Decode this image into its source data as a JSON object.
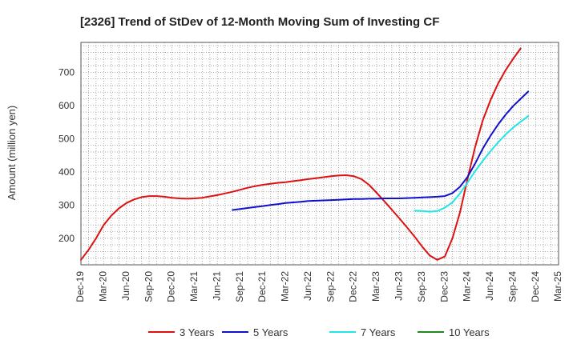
{
  "chart_data": {
    "type": "line",
    "title": "[2326]  Trend of StDev of 12-Month Moving Sum of Investing CF",
    "xlabel": "",
    "ylabel": "Amount (million yen)",
    "ylim": [
      120,
      790
    ],
    "yticks": [
      200,
      300,
      400,
      500,
      600,
      700
    ],
    "x_categories": [
      "Dec-19",
      "Mar-20",
      "Jun-20",
      "Sep-20",
      "Dec-20",
      "Mar-21",
      "Jun-21",
      "Sep-21",
      "Dec-21",
      "Mar-22",
      "Jun-22",
      "Sep-22",
      "Dec-22",
      "Mar-23",
      "Jun-23",
      "Sep-23",
      "Dec-23",
      "Mar-24",
      "Jun-24",
      "Sep-24",
      "Dec-24",
      "Mar-25"
    ],
    "grid": true,
    "legend_position": "bottom",
    "series": [
      {
        "name": "3 Years",
        "color": "#dd1111",
        "points": [
          [
            "Dec-19",
            135
          ],
          [
            "Jan-20",
            165
          ],
          [
            "Feb-20",
            200
          ],
          [
            "Mar-20",
            240
          ],
          [
            "Apr-20",
            268
          ],
          [
            "May-20",
            290
          ],
          [
            "Jun-20",
            306
          ],
          [
            "Jul-20",
            317
          ],
          [
            "Aug-20",
            324
          ],
          [
            "Sep-20",
            327
          ],
          [
            "Oct-20",
            327
          ],
          [
            "Nov-20",
            325
          ],
          [
            "Dec-20",
            322
          ],
          [
            "Jan-21",
            320
          ],
          [
            "Feb-21",
            319
          ],
          [
            "Mar-21",
            320
          ],
          [
            "Apr-21",
            322
          ],
          [
            "May-21",
            326
          ],
          [
            "Jun-21",
            330
          ],
          [
            "Jul-21",
            335
          ],
          [
            "Aug-21",
            340
          ],
          [
            "Sep-21",
            346
          ],
          [
            "Oct-21",
            352
          ],
          [
            "Nov-21",
            357
          ],
          [
            "Dec-21",
            361
          ],
          [
            "Jan-22",
            364
          ],
          [
            "Feb-22",
            367
          ],
          [
            "Mar-22",
            369
          ],
          [
            "Apr-22",
            372
          ],
          [
            "May-22",
            375
          ],
          [
            "Jun-22",
            378
          ],
          [
            "Jul-22",
            381
          ],
          [
            "Aug-22",
            384
          ],
          [
            "Sep-22",
            387
          ],
          [
            "Oct-22",
            389
          ],
          [
            "Nov-22",
            390
          ],
          [
            "Dec-22",
            387
          ],
          [
            "Jan-23",
            378
          ],
          [
            "Feb-23",
            361
          ],
          [
            "Mar-23",
            337
          ],
          [
            "Apr-23",
            312
          ],
          [
            "May-23",
            286
          ],
          [
            "Jun-23",
            260
          ],
          [
            "Jul-23",
            233
          ],
          [
            "Aug-23",
            205
          ],
          [
            "Sep-23",
            175
          ],
          [
            "Oct-23",
            148
          ],
          [
            "Nov-23",
            135
          ],
          [
            "Dec-23",
            145
          ],
          [
            "Jan-24",
            200
          ],
          [
            "Feb-24",
            278
          ],
          [
            "Mar-24",
            380
          ],
          [
            "Apr-24",
            475
          ],
          [
            "May-24",
            555
          ],
          [
            "Jun-24",
            615
          ],
          [
            "Jul-24",
            665
          ],
          [
            "Aug-24",
            706
          ],
          [
            "Sep-24",
            740
          ],
          [
            "Oct-24",
            772
          ]
        ]
      },
      {
        "name": "5 Years",
        "color": "#1111cc",
        "points": [
          [
            "Aug-21",
            285
          ],
          [
            "Sep-21",
            288
          ],
          [
            "Oct-21",
            291
          ],
          [
            "Nov-21",
            294
          ],
          [
            "Dec-21",
            297
          ],
          [
            "Jan-22",
            300
          ],
          [
            "Feb-22",
            303
          ],
          [
            "Mar-22",
            306
          ],
          [
            "Apr-22",
            308
          ],
          [
            "May-22",
            310
          ],
          [
            "Jun-22",
            312
          ],
          [
            "Jul-22",
            313
          ],
          [
            "Aug-22",
            314
          ],
          [
            "Sep-22",
            315
          ],
          [
            "Oct-22",
            316
          ],
          [
            "Nov-22",
            317
          ],
          [
            "Dec-22",
            318
          ],
          [
            "Jan-23",
            318
          ],
          [
            "Feb-23",
            319
          ],
          [
            "Mar-23",
            319
          ],
          [
            "Apr-23",
            320
          ],
          [
            "May-23",
            320
          ],
          [
            "Jun-23",
            320
          ],
          [
            "Jul-23",
            321
          ],
          [
            "Aug-23",
            322
          ],
          [
            "Sep-23",
            323
          ],
          [
            "Oct-23",
            324
          ],
          [
            "Nov-23",
            325
          ],
          [
            "Dec-23",
            327
          ],
          [
            "Jan-24",
            336
          ],
          [
            "Feb-24",
            355
          ],
          [
            "Mar-24",
            385
          ],
          [
            "Apr-24",
            425
          ],
          [
            "May-24",
            470
          ],
          [
            "Jun-24",
            508
          ],
          [
            "Jul-24",
            542
          ],
          [
            "Aug-24",
            572
          ],
          [
            "Sep-24",
            598
          ],
          [
            "Oct-24",
            620
          ],
          [
            "Nov-24",
            642
          ]
        ]
      },
      {
        "name": "7 Years",
        "color": "#22e5e5",
        "points": [
          [
            "Aug-23",
            283
          ],
          [
            "Sep-23",
            282
          ],
          [
            "Oct-23",
            280
          ],
          [
            "Nov-23",
            282
          ],
          [
            "Dec-23",
            292
          ],
          [
            "Jan-24",
            308
          ],
          [
            "Feb-24",
            335
          ],
          [
            "Mar-24",
            368
          ],
          [
            "Apr-24",
            402
          ],
          [
            "May-24",
            433
          ],
          [
            "Jun-24",
            462
          ],
          [
            "Jul-24",
            488
          ],
          [
            "Aug-24",
            512
          ],
          [
            "Sep-24",
            533
          ],
          [
            "Oct-24",
            551
          ],
          [
            "Nov-24",
            568
          ]
        ]
      },
      {
        "name": "10 Years",
        "color": "#228822",
        "points": []
      }
    ]
  }
}
